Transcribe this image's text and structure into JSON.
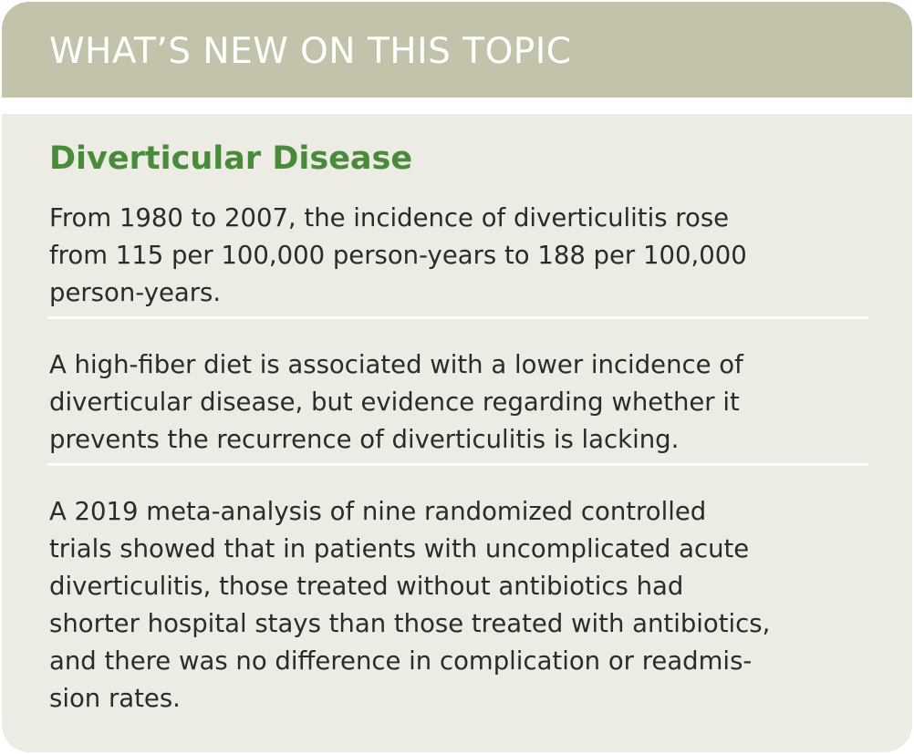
{
  "header": {
    "title": "WHAT’S NEW ON THIS TOPIC"
  },
  "section": {
    "heading": "Diverticular Disease",
    "paragraphs": [
      [
        "From 1980 to 2007, the incidence of diverticulitis rose",
        "from 115 per 100,000 person-years to 188 per 100,000",
        "person-years."
      ],
      [
        "A high-fiber diet is associated with a lower incidence of",
        "diverticular disease, but evidence regarding whether it",
        "prevents the recurrence of diverticulitis is lacking."
      ],
      [
        "A 2019 meta-analysis of nine randomized controlled",
        "trials showed that in patients with uncomplicated acute",
        "diverticulitis, those treated without antibiotics had",
        "shorter hospital stays than those treated with antibiotics,",
        "and there was no difference in complication or readmis-",
        "sion rates."
      ]
    ]
  }
}
